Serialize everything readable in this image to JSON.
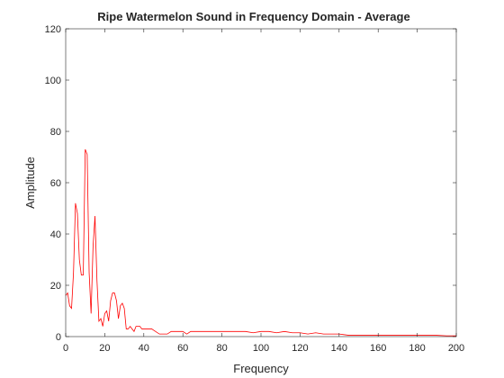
{
  "chart_data": {
    "type": "line",
    "title": "Ripe Watermelon Sound in Frequency Domain - Average",
    "xlabel": "Frequency",
    "ylabel": "Amplitude",
    "xlim": [
      0,
      200
    ],
    "ylim": [
      0,
      120
    ],
    "xticks": [
      "0",
      "20",
      "40",
      "60",
      "80",
      "100",
      "120",
      "140",
      "160",
      "180",
      "200"
    ],
    "yticks": [
      "0",
      "20",
      "40",
      "60",
      "80",
      "100",
      "120"
    ],
    "grid": false,
    "legend": "none",
    "line_color": "#ff0000",
    "series": [
      {
        "x": [
          0,
          1,
          2,
          3,
          4,
          5,
          6,
          7,
          8,
          9,
          10,
          11,
          12,
          13,
          14,
          15,
          16,
          17,
          18,
          19,
          20,
          21,
          22,
          23,
          24,
          25,
          26,
          27,
          28,
          29,
          30,
          31,
          32,
          33,
          34,
          35,
          36,
          37,
          38,
          39,
          40,
          42,
          44,
          46,
          48,
          50,
          52,
          54,
          56,
          58,
          60,
          62,
          64,
          66,
          68,
          70,
          72,
          74,
          76,
          78,
          80,
          84,
          88,
          92,
          96,
          100,
          104,
          108,
          112,
          116,
          120,
          124,
          128,
          132,
          136,
          140,
          145,
          150,
          155,
          160,
          165,
          170,
          175,
          180,
          185,
          190,
          195,
          200
        ],
        "y": [
          16,
          17,
          12,
          11,
          25,
          52,
          48,
          30,
          24,
          24,
          73,
          71,
          25,
          9,
          35,
          47,
          22,
          6,
          7,
          4,
          9,
          10,
          6,
          14,
          17,
          17,
          14,
          7,
          12,
          13,
          11,
          3,
          3,
          4,
          3,
          2,
          4,
          4,
          4,
          3,
          3,
          3,
          3,
          2,
          1,
          1,
          1,
          2,
          2,
          2,
          2,
          1,
          2,
          2,
          2,
          2,
          2,
          2,
          2,
          2,
          2,
          2,
          2,
          2,
          1.5,
          2,
          2,
          1.5,
          2,
          1.5,
          1.5,
          1,
          1.5,
          1,
          1,
          1,
          0.5,
          0.5,
          0.5,
          0.5,
          0.5,
          0.5,
          0.5,
          0.5,
          0.5,
          0.5,
          0.3,
          0.3
        ]
      }
    ]
  }
}
